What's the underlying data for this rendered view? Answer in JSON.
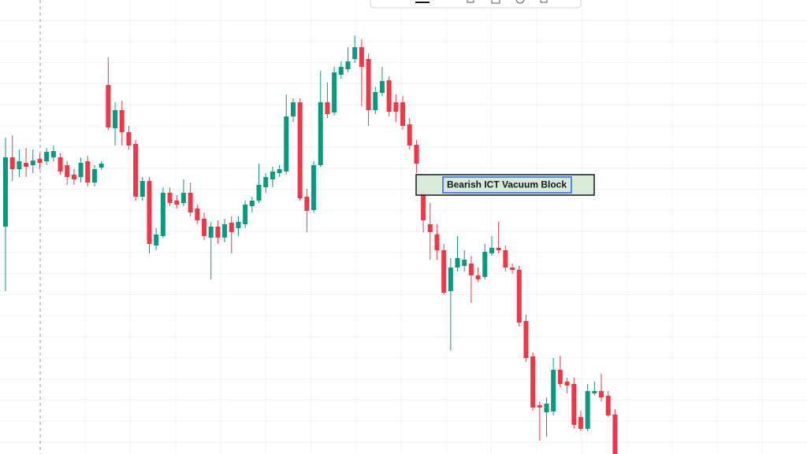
{
  "chart_data": {
    "type": "candlestick",
    "annotation": "Bearish ICT Vacuum Block",
    "up_color": "#089981",
    "down_color": "#f23645",
    "grid": true,
    "ylim": [
      0,
      577
    ],
    "open": [
      289,
      377,
      362,
      370,
      367,
      375,
      372,
      377,
      377,
      367,
      355,
      352,
      372,
      345,
      364,
      469,
      414,
      437,
      409,
      394,
      327,
      347,
      265,
      277,
      332,
      322,
      319,
      332,
      312,
      299,
      275,
      289,
      275,
      294,
      287,
      292,
      315,
      322,
      339,
      349,
      357,
      359,
      429,
      447,
      327,
      310,
      367,
      447,
      434,
      482,
      489,
      502,
      517,
      502,
      437,
      459,
      475,
      447,
      447,
      419,
      393,
      332,
      292,
      279,
      259,
      207,
      237,
      239,
      242,
      227,
      225,
      255,
      262,
      259,
      237,
      234,
      169,
      124,
      62,
      53,
      54,
      107,
      92,
      89,
      47,
      32,
      77,
      80,
      74,
      50
    ],
    "high": [
      402,
      405,
      387,
      389,
      387,
      382,
      389,
      392,
      382,
      372,
      362,
      377,
      379,
      367,
      372,
      504,
      447,
      449,
      417,
      399,
      352,
      352,
      287,
      339,
      339,
      329,
      349,
      345,
      317,
      307,
      295,
      297,
      299,
      302,
      302,
      322,
      327,
      369,
      357,
      365,
      367,
      457,
      452,
      452,
      337,
      372,
      487,
      472,
      492,
      499,
      517,
      532,
      527,
      509,
      467,
      492,
      480,
      457,
      455,
      427,
      399,
      337,
      319,
      292,
      267,
      249,
      277,
      259,
      252,
      237,
      267,
      277,
      295,
      265,
      242,
      239,
      177,
      129,
      67,
      72,
      122,
      125,
      97,
      97,
      55,
      89,
      92,
      102,
      80,
      57
    ],
    "low": [
      207,
      347,
      352,
      352,
      357,
      362,
      367,
      372,
      355,
      342,
      342,
      345,
      340,
      340,
      361,
      412,
      392,
      392,
      387,
      322,
      322,
      255,
      259,
      275,
      315,
      312,
      315,
      302,
      292,
      272,
      222,
      267,
      269,
      255,
      277,
      287,
      307,
      319,
      332,
      339,
      352,
      355,
      422,
      322,
      282,
      307,
      365,
      427,
      430,
      477,
      485,
      497,
      442,
      417,
      432,
      455,
      429,
      422,
      412,
      387,
      357,
      282,
      247,
      247,
      202,
      132,
      232,
      232,
      192,
      219,
      222,
      252,
      255,
      232,
      229,
      162,
      117,
      55,
      17,
      22,
      49,
      85,
      77,
      32,
      29,
      29,
      75,
      67,
      47,
      0
    ],
    "close": [
      377,
      362,
      372,
      365,
      373,
      370,
      384,
      385,
      359,
      352,
      349,
      370,
      345,
      362,
      369,
      415,
      437,
      409,
      392,
      327,
      347,
      267,
      279,
      332,
      319,
      317,
      332,
      307,
      297,
      277,
      289,
      275,
      292,
      282,
      295,
      317,
      322,
      342,
      352,
      359,
      362,
      429,
      447,
      325,
      309,
      367,
      447,
      432,
      485,
      492,
      499,
      517,
      492,
      437,
      460,
      474,
      435,
      435,
      417,
      392,
      369,
      297,
      282,
      259,
      205,
      237,
      249,
      247,
      227,
      222,
      257,
      262,
      259,
      237,
      234,
      167,
      122,
      59,
      59,
      64,
      107,
      89,
      87,
      37,
      32,
      80,
      80,
      72,
      49,
      0
    ]
  }
}
